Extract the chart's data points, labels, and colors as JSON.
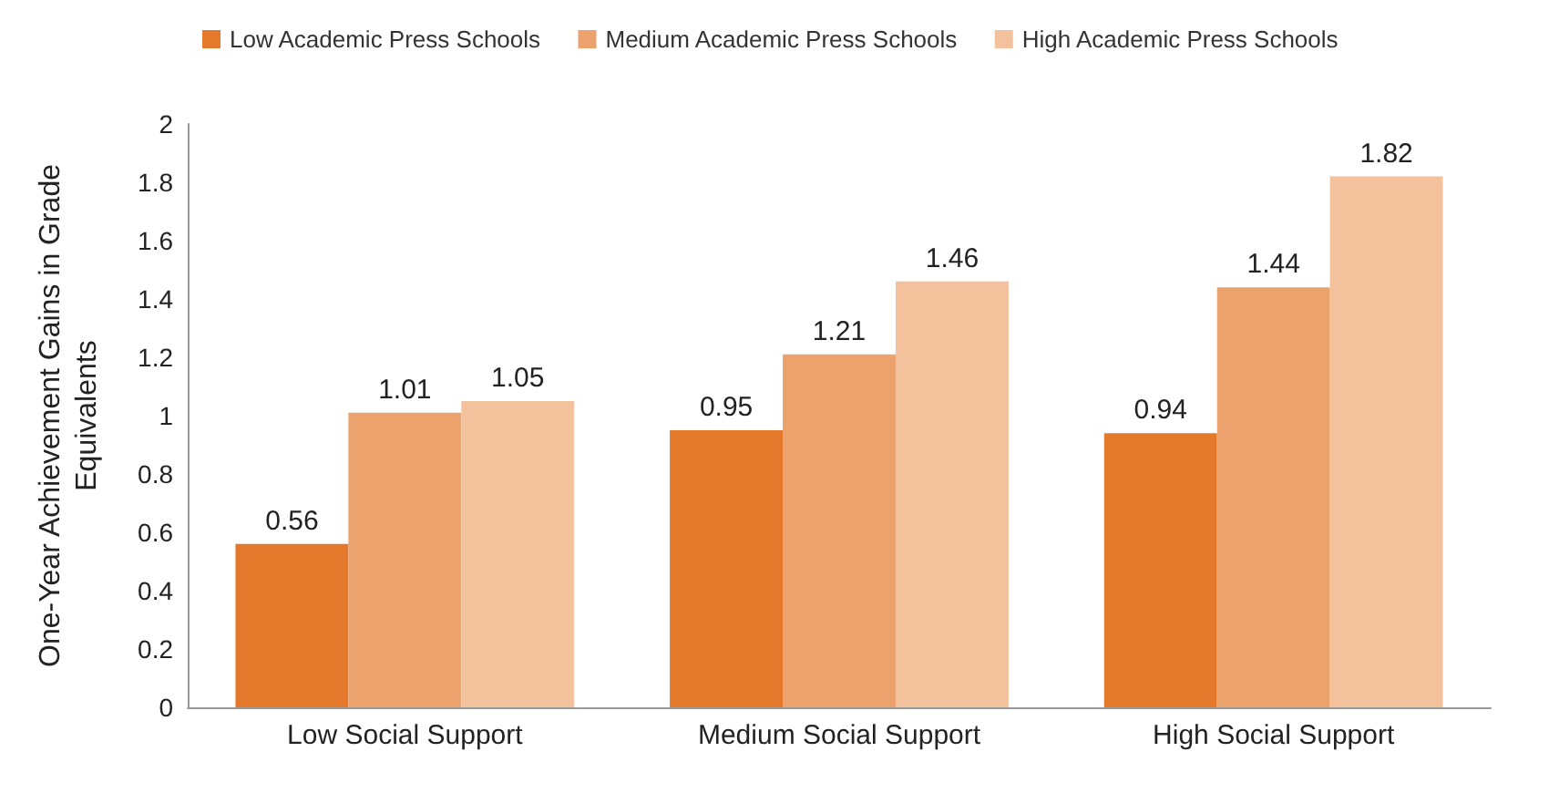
{
  "chart_data": {
    "type": "bar",
    "ylabel": "One-Year Achievement Gains in Grade Equivalents",
    "categories": [
      "Low Social Support",
      "Medium Social Support",
      "High Social Support"
    ],
    "series": [
      {
        "name": "Low Academic Press Schools",
        "color": "#e5792b",
        "values": [
          0.56,
          0.95,
          0.94
        ]
      },
      {
        "name": "Medium Academic Press Schools",
        "color": "#eca26c",
        "values": [
          1.01,
          1.21,
          1.44
        ]
      },
      {
        "name": "High Academic Press Schools",
        "color": "#f3c19b",
        "values": [
          1.05,
          1.46,
          1.82
        ]
      }
    ],
    "ylim": [
      0,
      2
    ],
    "yticks": [
      0,
      0.2,
      0.4,
      0.6,
      0.8,
      1,
      1.2,
      1.4,
      1.6,
      1.8,
      2
    ],
    "grid": false,
    "legend": "top",
    "data_labels": true
  }
}
